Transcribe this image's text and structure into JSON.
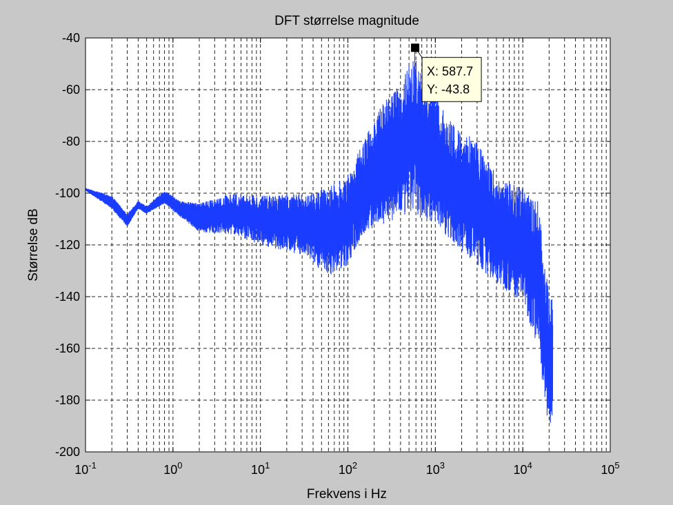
{
  "chart_data": {
    "type": "line",
    "title": "DFT størrelse magnitude",
    "xlabel": "Frekvens i Hz",
    "ylabel": "Størrelse dB",
    "xscale": "log",
    "xlim": [
      0.1,
      100000
    ],
    "ylim": [
      -200,
      -40
    ],
    "x_ticks": [
      {
        "value": 0.1,
        "base": "10",
        "exp": "-1"
      },
      {
        "value": 1,
        "base": "10",
        "exp": "0"
      },
      {
        "value": 10,
        "base": "10",
        "exp": "1"
      },
      {
        "value": 100,
        "base": "10",
        "exp": "2"
      },
      {
        "value": 1000,
        "base": "10",
        "exp": "3"
      },
      {
        "value": 10000,
        "base": "10",
        "exp": "4"
      },
      {
        "value": 100000,
        "base": "10",
        "exp": "5"
      }
    ],
    "y_ticks": [
      -40,
      -60,
      -80,
      -100,
      -120,
      -140,
      -160,
      -180,
      -200
    ],
    "grid": true,
    "series": [
      {
        "color": "#1a3cff",
        "envelope_upper": [
          [
            0.1,
            -98
          ],
          [
            0.2,
            -101
          ],
          [
            0.3,
            -108
          ],
          [
            0.4,
            -103
          ],
          [
            0.5,
            -105
          ],
          [
            0.8,
            -99
          ],
          [
            1.2,
            -103
          ],
          [
            2,
            -104
          ],
          [
            5,
            -100
          ],
          [
            10,
            -101
          ],
          [
            30,
            -100
          ],
          [
            60,
            -98
          ],
          [
            100,
            -93
          ],
          [
            150,
            -80
          ],
          [
            250,
            -65
          ],
          [
            400,
            -58
          ],
          [
            587.7,
            -43.8
          ],
          [
            700,
            -55
          ],
          [
            1000,
            -62
          ],
          [
            1500,
            -72
          ],
          [
            3000,
            -80
          ],
          [
            5000,
            -93
          ],
          [
            10000,
            -98
          ],
          [
            15000,
            -103
          ],
          [
            20000,
            -140
          ],
          [
            22000,
            -140
          ]
        ],
        "envelope_lower": [
          [
            0.1,
            -99
          ],
          [
            0.2,
            -106
          ],
          [
            0.3,
            -113
          ],
          [
            0.4,
            -106
          ],
          [
            0.5,
            -108
          ],
          [
            0.8,
            -104
          ],
          [
            1.2,
            -109
          ],
          [
            2,
            -115
          ],
          [
            5,
            -116
          ],
          [
            10,
            -120
          ],
          [
            30,
            -124
          ],
          [
            60,
            -132
          ],
          [
            100,
            -128
          ],
          [
            150,
            -116
          ],
          [
            250,
            -112
          ],
          [
            400,
            -110
          ],
          [
            587.7,
            -108
          ],
          [
            700,
            -110
          ],
          [
            1000,
            -112
          ],
          [
            1500,
            -118
          ],
          [
            3000,
            -128
          ],
          [
            5000,
            -135
          ],
          [
            10000,
            -142
          ],
          [
            15000,
            -160
          ],
          [
            20000,
            -193
          ],
          [
            22000,
            -188
          ]
        ]
      }
    ],
    "datatip": {
      "x": 587.7,
      "y": -43.8,
      "x_text": "X: 587.7",
      "y_text": "Y: -43.8",
      "background": "#ffffe1"
    },
    "colors": {
      "figure_background": "#c8c8c8",
      "axes_background": "#ffffff",
      "line": "#1a3cff"
    }
  }
}
